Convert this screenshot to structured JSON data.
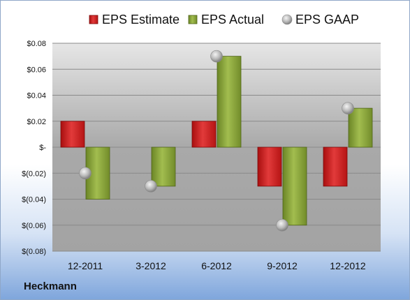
{
  "company": "Heckmann",
  "chart_data": {
    "type": "bar",
    "categories": [
      "12-2011",
      "3-2012",
      "6-2012",
      "9-2012",
      "12-2012"
    ],
    "series": [
      {
        "name": "EPS Estimate",
        "kind": "bar",
        "color": "#cc1f1f",
        "values": [
          0.02,
          null,
          0.02,
          -0.03,
          -0.03
        ]
      },
      {
        "name": "EPS Actual",
        "kind": "bar",
        "color": "#7d9a2e",
        "values": [
          -0.04,
          -0.03,
          0.07,
          -0.06,
          0.03
        ]
      },
      {
        "name": "EPS GAAP",
        "kind": "marker",
        "color": "#a8a8a8",
        "values": [
          -0.02,
          -0.03,
          0.07,
          -0.06,
          0.03
        ]
      }
    ],
    "yticks": [
      "$0.08",
      "$0.06",
      "$0.04",
      "$0.02",
      "$-",
      "$(0.02)",
      "$(0.04)",
      "$(0.06)",
      "$(0.08)"
    ],
    "ylim": [
      -0.08,
      0.08
    ],
    "legend_position": "top",
    "grid": true
  }
}
